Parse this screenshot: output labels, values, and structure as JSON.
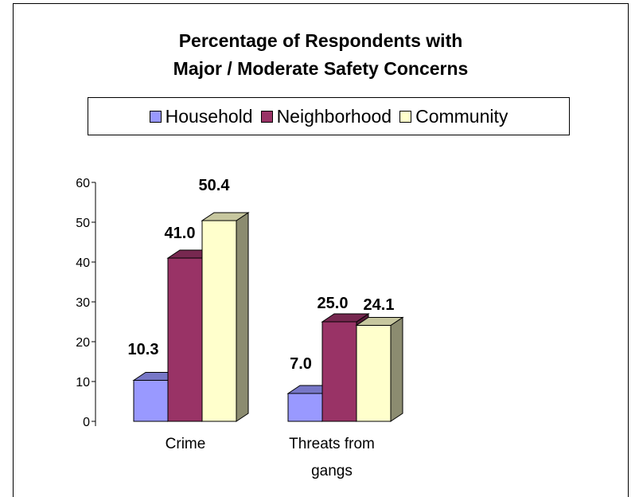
{
  "chart_data": {
    "type": "bar",
    "title_lines": [
      "Percentage of Respondents with",
      "Major / Moderate Safety Concerns"
    ],
    "categories": [
      [
        "Crime"
      ],
      [
        "Threats from",
        "gangs"
      ]
    ],
    "series": [
      {
        "name": "Household",
        "values": [
          10.3,
          7.0
        ],
        "labels": [
          "10.3",
          "7.0"
        ],
        "color": "#9999ff"
      },
      {
        "name": "Neighborhood",
        "values": [
          41.0,
          25.0
        ],
        "labels": [
          "41.0",
          "25.0"
        ],
        "color": "#993366"
      },
      {
        "name": "Community",
        "values": [
          50.4,
          24.1
        ],
        "labels": [
          "50.4",
          "24.1"
        ],
        "color": "#ffffcc"
      }
    ],
    "ylim": [
      0,
      60
    ],
    "yticks": [
      0,
      10,
      20,
      30,
      40,
      50,
      60
    ],
    "legend_position": "top",
    "grid": false,
    "style": "3d-column"
  }
}
